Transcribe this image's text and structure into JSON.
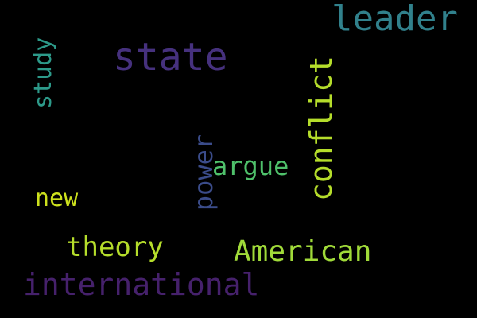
{
  "words": [
    {
      "id": "leader",
      "text": "leader",
      "color": "#31818c",
      "orientation": "horizontal"
    },
    {
      "id": "state",
      "text": "state",
      "color": "#46317e",
      "orientation": "horizontal"
    },
    {
      "id": "study",
      "text": "study",
      "color": "#2d9a8a",
      "orientation": "vertical"
    },
    {
      "id": "conflict",
      "text": "conflict",
      "color": "#b5dd2b",
      "orientation": "vertical"
    },
    {
      "id": "power",
      "text": "power",
      "color": "#3b4c8a",
      "orientation": "vertical"
    },
    {
      "id": "argue",
      "text": "argue",
      "color": "#4fc16b",
      "orientation": "horizontal"
    },
    {
      "id": "new",
      "text": "new",
      "color": "#cde11d",
      "orientation": "horizontal"
    },
    {
      "id": "theory",
      "text": "theory",
      "color": "#b5dd2b",
      "orientation": "horizontal"
    },
    {
      "id": "american",
      "text": "American",
      "color": "#a0da39",
      "orientation": "horizontal"
    },
    {
      "id": "international",
      "text": "international",
      "color": "#46216c",
      "orientation": "horizontal"
    }
  ]
}
